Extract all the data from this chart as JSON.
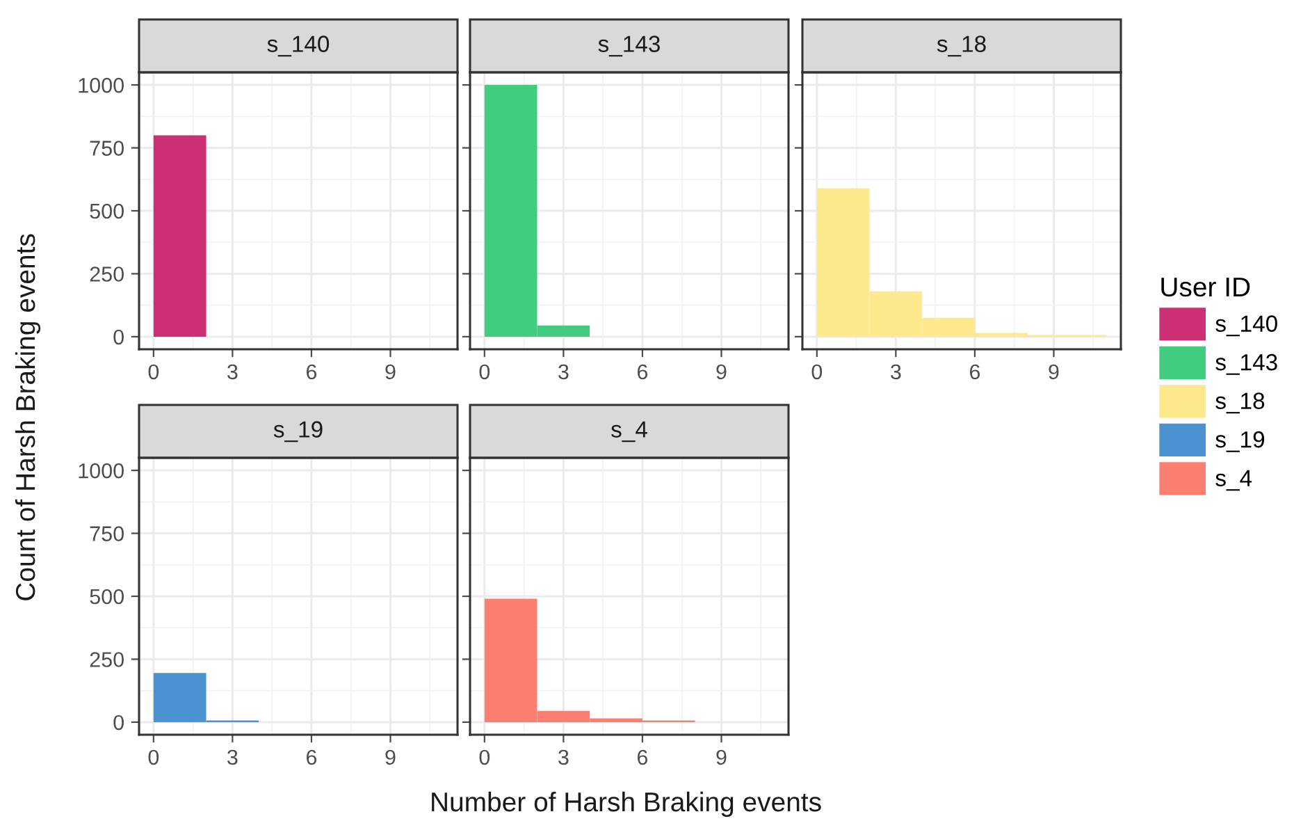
{
  "chart_data": [
    {
      "type": "histogram",
      "title": "s_140",
      "ylabel": "Count of Harsh Braking events",
      "legend_title": "User ID",
      "legend": "right",
      "bins": [
        0,
        2
      ],
      "series": [
        {
          "name": "s_140",
          "color": "#cc3073",
          "values": [
            800
          ]
        }
      ],
      "xlim": [
        -0.55,
        11.55
      ],
      "ylim": [
        -50,
        1050
      ],
      "xticks": [
        0,
        3,
        6,
        9
      ],
      "yticks": [
        0,
        250,
        500,
        750,
        1000
      ],
      "grid": true
    },
    {
      "type": "histogram",
      "title": "s_143",
      "legend": "right",
      "bins": [
        0,
        2,
        4
      ],
      "series": [
        {
          "name": "s_143",
          "color": "#41cc7f",
          "values": [
            1000,
            45
          ]
        }
      ],
      "xlim": [
        -0.55,
        11.55
      ],
      "ylim": [
        -50,
        1050
      ],
      "xticks": [
        0,
        3,
        6,
        9
      ],
      "yticks": [
        0,
        250,
        500,
        750,
        1000
      ],
      "grid": true,
      "tick_labels": "x"
    },
    {
      "type": "histogram",
      "title": "s_18",
      "legend": "right",
      "bins": [
        0,
        2,
        4,
        6,
        8,
        11
      ],
      "series": [
        {
          "name": "s_18",
          "color": "#ffe98d",
          "values": [
            590,
            180,
            75,
            15,
            7
          ]
        }
      ],
      "xlim": [
        -0.55,
        11.55
      ],
      "ylim": [
        -50,
        1050
      ],
      "xticks": [
        0,
        3,
        6,
        9
      ],
      "yticks": [
        0,
        250,
        500,
        750,
        1000
      ],
      "grid": true,
      "tick_labels": "x"
    },
    {
      "type": "histogram",
      "title": "s_19",
      "legend": "right",
      "bins": [
        0,
        2,
        4
      ],
      "series": [
        {
          "name": "s_19",
          "color": "#4b93d0",
          "values": [
            195,
            7
          ]
        }
      ],
      "xlim": [
        -0.55,
        11.55
      ],
      "ylim": [
        -50,
        1050
      ],
      "xticks": [
        0,
        3,
        6,
        9
      ],
      "yticks": [
        0,
        250,
        500,
        750,
        1000
      ],
      "grid": true
    },
    {
      "type": "histogram",
      "title": "s_4",
      "xlabel": "Number of Harsh Braking events",
      "legend": "right",
      "bins": [
        0,
        2,
        4,
        6,
        8
      ],
      "series": [
        {
          "name": "s_4",
          "color": "#fb8070",
          "values": [
            490,
            45,
            15,
            7
          ]
        }
      ],
      "xlim": [
        -0.55,
        11.55
      ],
      "ylim": [
        -50,
        1050
      ],
      "xticks": [
        0,
        3,
        6,
        9
      ],
      "yticks": [
        0,
        250,
        500,
        750,
        1000
      ],
      "grid": true,
      "tick_labels": "x"
    }
  ]
}
